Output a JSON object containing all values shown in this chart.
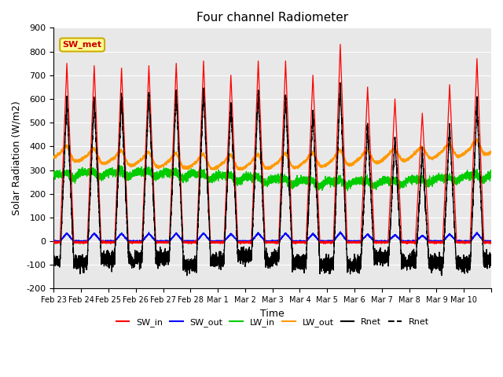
{
  "title": "Four channel Radiometer",
  "xlabel": "Time",
  "ylabel": "Solar Radiation (W/m2)",
  "ylim": [
    -200,
    900
  ],
  "yticks": [
    -200,
    -100,
    0,
    100,
    200,
    300,
    400,
    500,
    600,
    700,
    800,
    900
  ],
  "annotation_text": "SW_met",
  "annotation_color": "#cc0000",
  "annotation_bg": "#ffff99",
  "annotation_border": "#ccaa00",
  "bg_color": "#e8e8e8",
  "colors": {
    "SW_in": "#ff0000",
    "SW_out": "#0000ff",
    "LW_in": "#00cc00",
    "LW_out": "#ff9900",
    "Rnet": "#000000"
  },
  "day_amplitudes_sw_in": [
    750,
    740,
    730,
    740,
    750,
    760,
    700,
    760,
    760,
    700,
    830,
    650,
    600,
    540,
    660,
    770
  ],
  "n_days": 16
}
